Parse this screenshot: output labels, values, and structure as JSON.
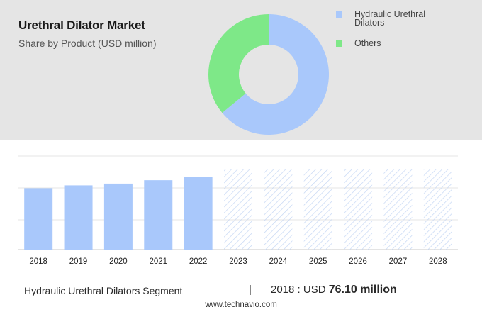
{
  "header": {
    "title": "Urethral Dilator Market",
    "subtitle": "Share by Product (USD million)"
  },
  "legend": [
    {
      "label": "Hydraulic Urethral Dilators",
      "color": "#a9c8fb"
    },
    {
      "label": "Others",
      "color": "#7ee888"
    }
  ],
  "footer": {
    "segment": "Hydraulic Urethral Dilators Segment",
    "divider": "|",
    "value_label": "2018 : USD",
    "value": "76.10 million"
  },
  "source": "www.technavio.com",
  "colors": {
    "bar": "#a9c8fb",
    "forecast_hatch": "#c4d6f4",
    "top_panel": "#e5e5e5"
  },
  "chart_data": [
    {
      "type": "pie",
      "title": "Share by Product (USD million)",
      "variant": "donut",
      "labels": [
        "Hydraulic Urethral Dilators",
        "Others"
      ],
      "values": [
        64,
        36
      ],
      "colors": [
        "#a9c8fb",
        "#7ee888"
      ]
    },
    {
      "type": "bar",
      "categories": [
        "2018",
        "2019",
        "2020",
        "2021",
        "2022",
        "2023",
        "2024",
        "2025",
        "2026",
        "2027",
        "2028"
      ],
      "values": [
        76.1,
        79.6,
        81.8,
        86.0,
        90.1,
        null,
        null,
        null,
        null,
        null,
        null
      ],
      "forecast": [
        false,
        false,
        false,
        false,
        false,
        true,
        true,
        true,
        true,
        true,
        true
      ],
      "ylim": [
        0,
        116
      ],
      "grid": true,
      "y_tick_labels": false
    }
  ]
}
